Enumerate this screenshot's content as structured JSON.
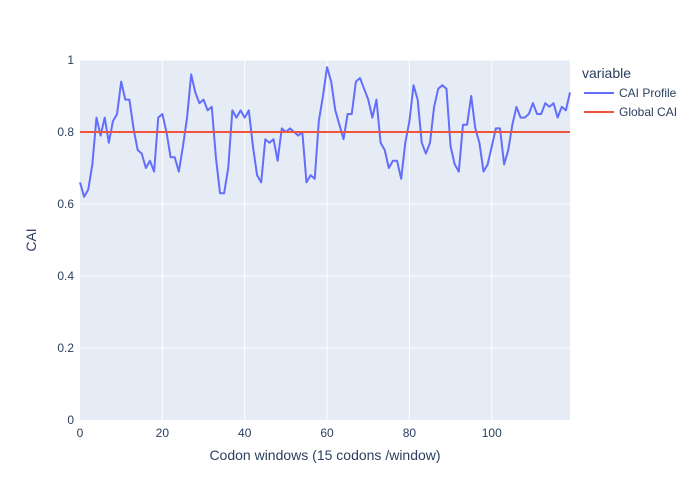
{
  "chart_data": {
    "type": "line",
    "xlabel": "Codon windows (15 codons /window)",
    "ylabel": "CAI",
    "xlim": [
      0,
      119
    ],
    "ylim": [
      0,
      1
    ],
    "x_ticks": [
      0,
      20,
      40,
      60,
      80,
      100
    ],
    "y_ticks": [
      0,
      0.2,
      0.4,
      0.6,
      0.8,
      1
    ],
    "grid": true,
    "legend": {
      "title": "variable",
      "placement": "right",
      "entries": [
        "CAI Profile",
        "Global CAI"
      ]
    },
    "series": [
      {
        "name": "CAI Profile",
        "color": "#636efa",
        "x": [
          0,
          1,
          2,
          3,
          4,
          5,
          6,
          7,
          8,
          9,
          10,
          11,
          12,
          13,
          14,
          15,
          16,
          17,
          18,
          19,
          20,
          21,
          22,
          23,
          24,
          25,
          26,
          27,
          28,
          29,
          30,
          31,
          32,
          33,
          34,
          35,
          36,
          37,
          38,
          39,
          40,
          41,
          42,
          43,
          44,
          45,
          46,
          47,
          48,
          49,
          50,
          51,
          52,
          53,
          54,
          55,
          56,
          57,
          58,
          59,
          60,
          61,
          62,
          63,
          64,
          65,
          66,
          67,
          68,
          69,
          70,
          71,
          72,
          73,
          74,
          75,
          76,
          77,
          78,
          79,
          80,
          81,
          82,
          83,
          84,
          85,
          86,
          87,
          88,
          89,
          90,
          91,
          92,
          93,
          94,
          95,
          96,
          97,
          98,
          99,
          100,
          101,
          102,
          103,
          104,
          105,
          106,
          107,
          108,
          109,
          110,
          111,
          112,
          113,
          114,
          115,
          116,
          117,
          118,
          119
        ],
        "values": [
          0.66,
          0.62,
          0.64,
          0.71,
          0.84,
          0.79,
          0.84,
          0.77,
          0.83,
          0.85,
          0.94,
          0.89,
          0.89,
          0.81,
          0.75,
          0.74,
          0.7,
          0.72,
          0.69,
          0.84,
          0.85,
          0.8,
          0.73,
          0.73,
          0.69,
          0.76,
          0.84,
          0.96,
          0.91,
          0.88,
          0.89,
          0.86,
          0.87,
          0.73,
          0.63,
          0.63,
          0.7,
          0.86,
          0.84,
          0.86,
          0.84,
          0.86,
          0.76,
          0.68,
          0.66,
          0.78,
          0.77,
          0.78,
          0.72,
          0.81,
          0.8,
          0.81,
          0.8,
          0.79,
          0.8,
          0.66,
          0.68,
          0.67,
          0.83,
          0.9,
          0.98,
          0.94,
          0.86,
          0.82,
          0.78,
          0.85,
          0.85,
          0.94,
          0.95,
          0.92,
          0.89,
          0.84,
          0.89,
          0.77,
          0.75,
          0.7,
          0.72,
          0.72,
          0.67,
          0.77,
          0.83,
          0.93,
          0.89,
          0.77,
          0.74,
          0.77,
          0.87,
          0.92,
          0.93,
          0.92,
          0.76,
          0.71,
          0.69,
          0.82,
          0.82,
          0.9,
          0.81,
          0.77,
          0.69,
          0.71,
          0.76,
          0.81,
          0.81,
          0.71,
          0.75,
          0.82,
          0.87,
          0.84,
          0.84,
          0.85,
          0.88,
          0.85,
          0.85,
          0.88,
          0.87,
          0.88,
          0.84,
          0.87,
          0.86,
          0.91
        ]
      },
      {
        "name": "Global CAI",
        "color": "#ef553b",
        "x": [
          0,
          119
        ],
        "values": [
          0.8,
          0.8
        ]
      }
    ]
  }
}
